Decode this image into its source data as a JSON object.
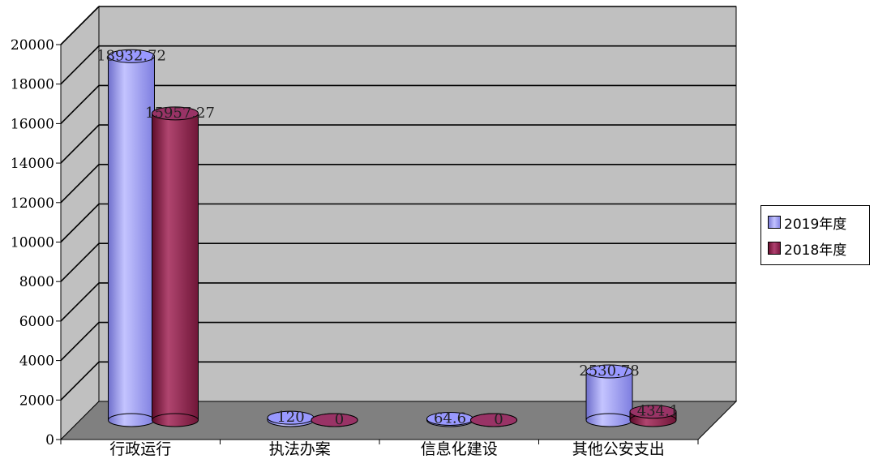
{
  "chart_data": {
    "type": "bar",
    "categories": [
      "行政运行",
      "执法办案",
      "信息化建设",
      "其他公安支出"
    ],
    "series": [
      {
        "name": "2019年度",
        "values": [
          18932.72,
          120,
          64.6,
          2530.78
        ],
        "labels": [
          "18932.72",
          "120",
          "64.6",
          "2530.78"
        ]
      },
      {
        "name": "2018年度",
        "values": [
          15957.27,
          0,
          0,
          434.1
        ],
        "labels": [
          "15957.27",
          "0",
          "0",
          "434.1"
        ]
      }
    ],
    "yticks": [
      "0",
      "2000",
      "4000",
      "6000",
      "8000",
      "10000",
      "12000",
      "14000",
      "16000",
      "18000",
      "20000"
    ],
    "ylim": [
      0,
      20000
    ],
    "grid": true,
    "legend_position": "right",
    "colors": {
      "2019": "#9999ff",
      "2018": "#993366",
      "wall": "#c0c0c0",
      "floor": "#808080"
    }
  }
}
